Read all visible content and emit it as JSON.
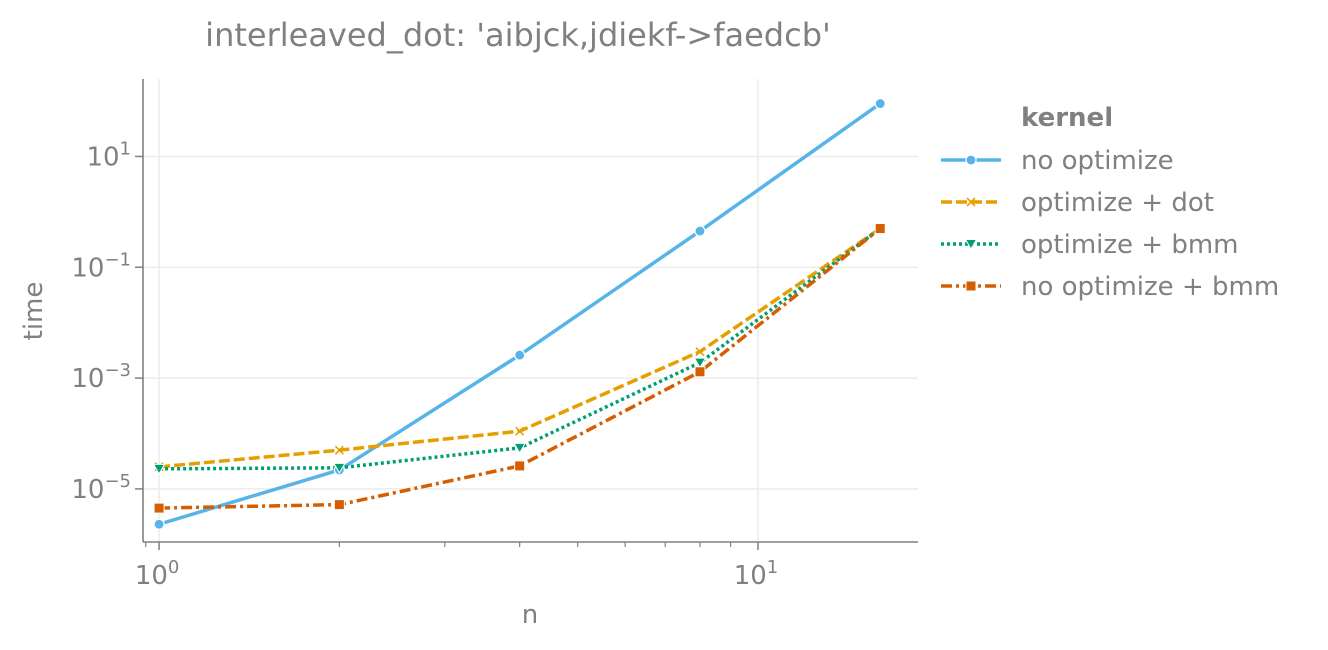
{
  "chart_data": {
    "type": "line",
    "title": "interleaved_dot: 'aibjck,jdiekf->faedcb'",
    "xlabel": "n",
    "ylabel": "time",
    "xscale": "log",
    "yscale": "log",
    "xlim": [
      0.94,
      18.5
    ],
    "ylim": [
      1.1e-06,
      250
    ],
    "grid": true,
    "x_ticks": [
      {
        "value": 1,
        "base": "10",
        "exp": "0"
      },
      {
        "value": 10,
        "base": "10",
        "exp": "1"
      }
    ],
    "y_ticks": [
      {
        "value": 1e-05,
        "base": "10",
        "exp": "−5"
      },
      {
        "value": 0.001,
        "base": "10",
        "exp": "−3"
      },
      {
        "value": 0.1,
        "base": "10",
        "exp": "−1"
      },
      {
        "value": 10,
        "base": "10",
        "exp": "1"
      }
    ],
    "legend": {
      "title": "kernel",
      "position": "right"
    },
    "x": [
      1,
      2,
      4,
      8,
      16
    ],
    "series": [
      {
        "name": "no optimize",
        "color": "#56b4e9",
        "dash": "solid",
        "marker": "circle",
        "values": [
          2.3e-06,
          2.2e-05,
          0.0026,
          0.45,
          90
        ]
      },
      {
        "name": "optimize + dot",
        "color": "#e69f00",
        "dash": "dashed",
        "marker": "x",
        "values": [
          2.5e-05,
          5e-05,
          0.00011,
          0.003,
          0.5
        ]
      },
      {
        "name": "optimize + bmm",
        "color": "#009e73",
        "dash": "dotted",
        "marker": "triangle-down",
        "values": [
          2.3e-05,
          2.4e-05,
          5.5e-05,
          0.0019,
          0.5
        ]
      },
      {
        "name": "no optimize + bmm",
        "color": "#d55e00",
        "dash": "dashdot",
        "marker": "square",
        "values": [
          4.5e-06,
          5.2e-06,
          2.6e-05,
          0.0013,
          0.5
        ]
      }
    ]
  }
}
